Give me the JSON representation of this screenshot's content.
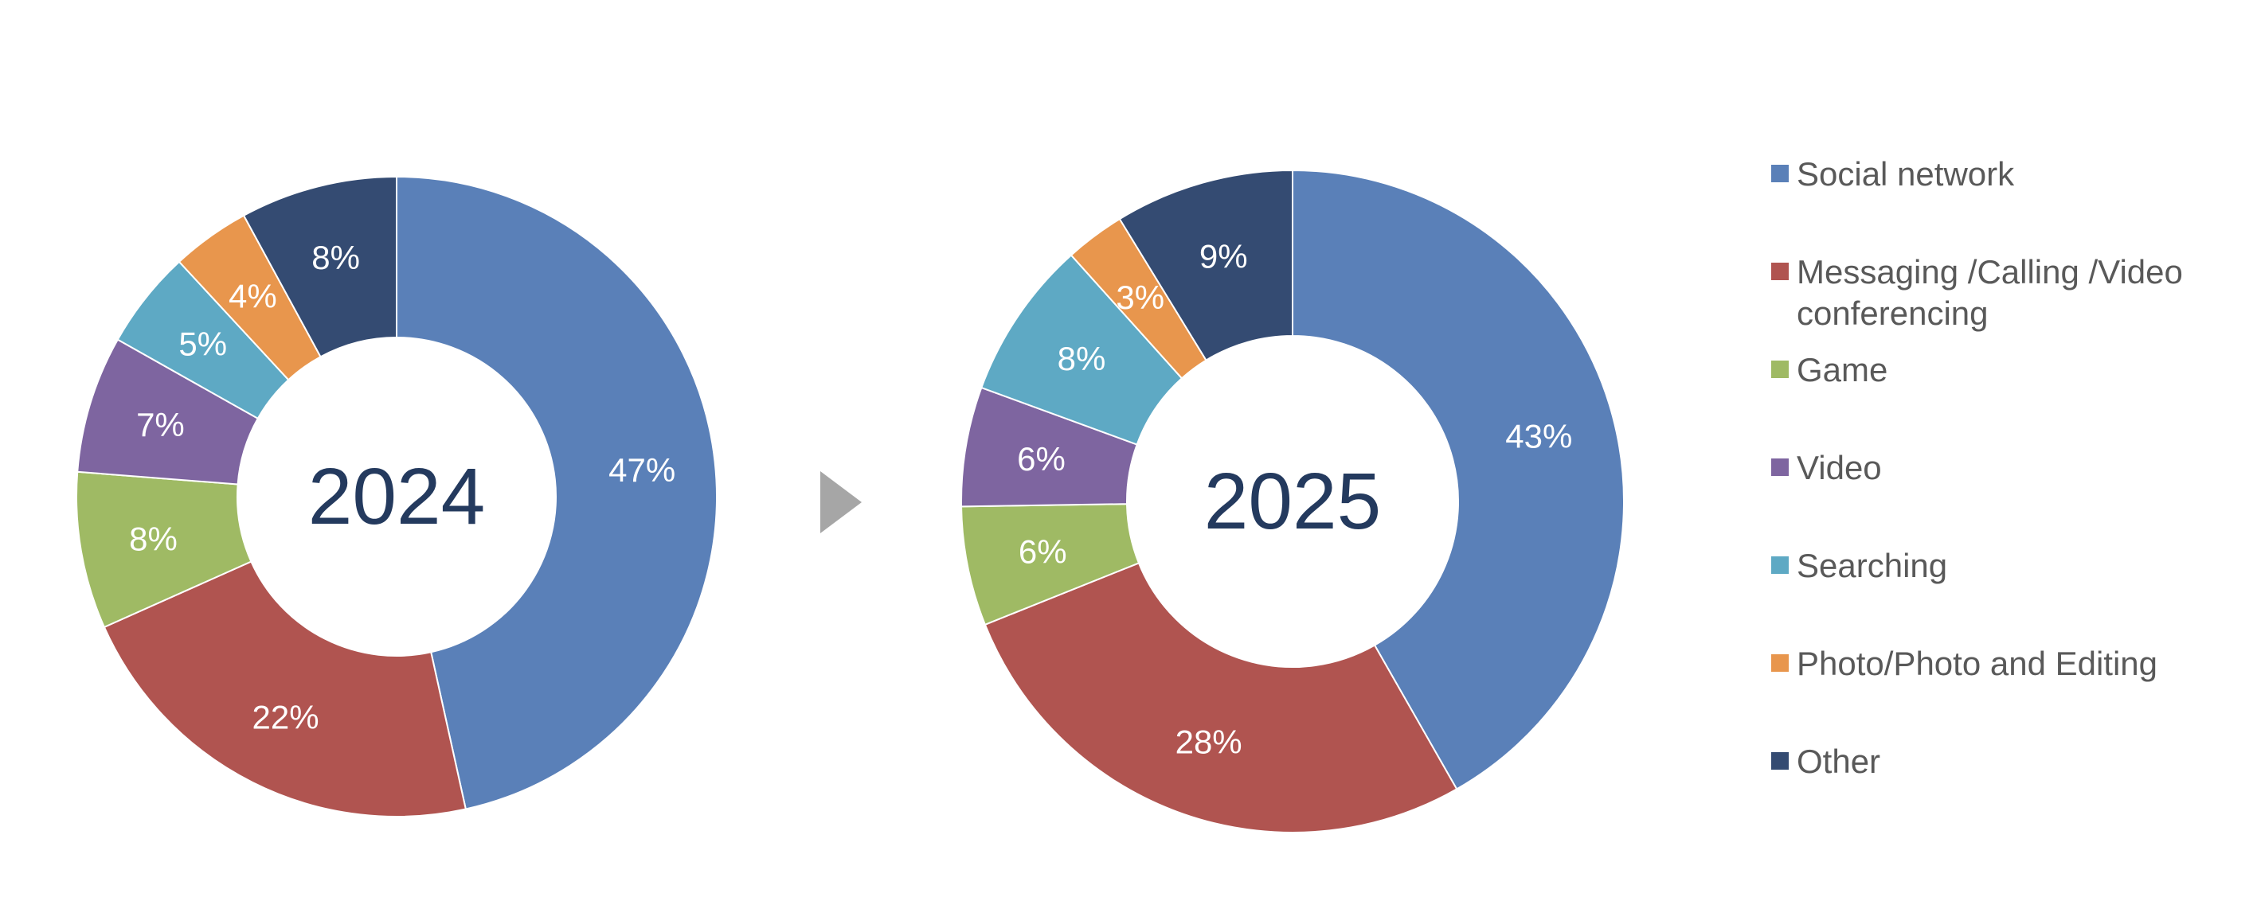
{
  "chart_data": {
    "type": "pie",
    "legend_position": "right",
    "categories": [
      "Social network",
      "Messaging /Calling /Video conferencing",
      "Game",
      "Video",
      "Searching",
      "Photo/Photo and Editing",
      "Other"
    ],
    "legend_lines": [
      [
        "Social network"
      ],
      [
        "Messaging /Calling /Video",
        "conferencing"
      ],
      [
        "Game"
      ],
      [
        "Video"
      ],
      [
        "Searching"
      ],
      [
        "Photo/Photo and Editing"
      ],
      [
        "Other"
      ]
    ],
    "colors": [
      "#5a80b8",
      "#b05450",
      "#9fba64",
      "#7e65a0",
      "#5ea9c4",
      "#e8964d",
      "#344b72"
    ],
    "series": [
      {
        "center_label": "2024",
        "values": [
          47,
          22,
          8,
          7,
          5,
          4,
          8
        ],
        "labels": [
          "47%",
          "22%",
          "8%",
          "7%",
          "5%",
          "4%",
          "8%"
        ]
      },
      {
        "center_label": "2025",
        "values": [
          43,
          28,
          6,
          6,
          8,
          3,
          9
        ],
        "labels": [
          "43%",
          "28%",
          "6%",
          "6%",
          "8%",
          "3%",
          "9%"
        ]
      }
    ]
  }
}
